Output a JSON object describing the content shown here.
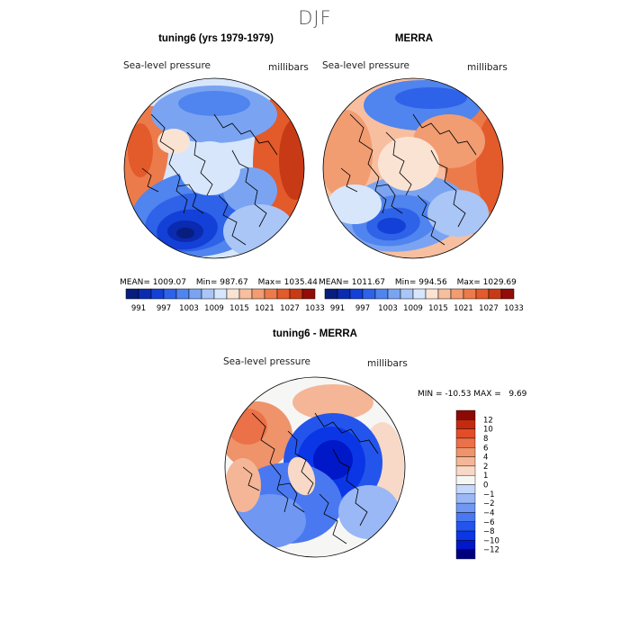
{
  "figure": {
    "title": "DJF",
    "colors": {
      "scale": [
        "#081d7e",
        "#0a2ab0",
        "#1340d6",
        "#2e62e8",
        "#5084ee",
        "#7aa4f2",
        "#a9c6f6",
        "#d7e6fb",
        "#fbe3d4",
        "#f7bf9f",
        "#f29c72",
        "#ec7b4b",
        "#e35a2b",
        "#c83a16",
        "#920d08"
      ],
      "diff_scale": [
        "#00007f",
        "#0018c8",
        "#0a36e6",
        "#2355ec",
        "#4a78f0",
        "#7098f3",
        "#9ab8f6",
        "#c5d7fa",
        "#f6f6f4",
        "#f8d8c6",
        "#f4b696",
        "#ef936a",
        "#ea7148",
        "#e24d27",
        "#c42a10",
        "#8a0a05"
      ],
      "coast": "#000000"
    }
  },
  "chart_data": [
    {
      "type": "heatmap",
      "projection": "polar stereographic",
      "title": "tuning6 (yrs 1979-1979)",
      "field_label": "Sea-level pressure",
      "units_label": "millibars",
      "stats": {
        "mean_label": "MEAN=",
        "mean": "1009.07",
        "min_label": "Min=",
        "min": "987.67",
        "max_label": "Max=",
        "max": "1035.44"
      },
      "colorbar_ticks": [
        "991",
        "997",
        "1003",
        "1009",
        "1015",
        "1021",
        "1027",
        "1033"
      ]
    },
    {
      "type": "heatmap",
      "projection": "polar stereographic",
      "title": "MERRA",
      "field_label": "Sea-level pressure",
      "units_label": "millibars",
      "stats": {
        "mean_label": "MEAN=",
        "mean": "1011.67",
        "min_label": "Min=",
        "min": "994.56",
        "max_label": "Max=",
        "max": "1029.69"
      },
      "colorbar_ticks": [
        "991",
        "997",
        "1003",
        "1009",
        "1015",
        "1021",
        "1027",
        "1033"
      ]
    },
    {
      "type": "heatmap",
      "projection": "polar stereographic",
      "title": "tuning6 - MERRA",
      "field_label": "Sea-level pressure",
      "units_label": "millibars",
      "minmax_text": "MIN = -10.53 MAX =   9.69",
      "colorbar_ticks": [
        "12",
        "10",
        "8",
        "6",
        "4",
        "2",
        "1",
        "0",
        "−1",
        "−2",
        "−4",
        "−6",
        "−8",
        "−10",
        "−12"
      ]
    }
  ]
}
